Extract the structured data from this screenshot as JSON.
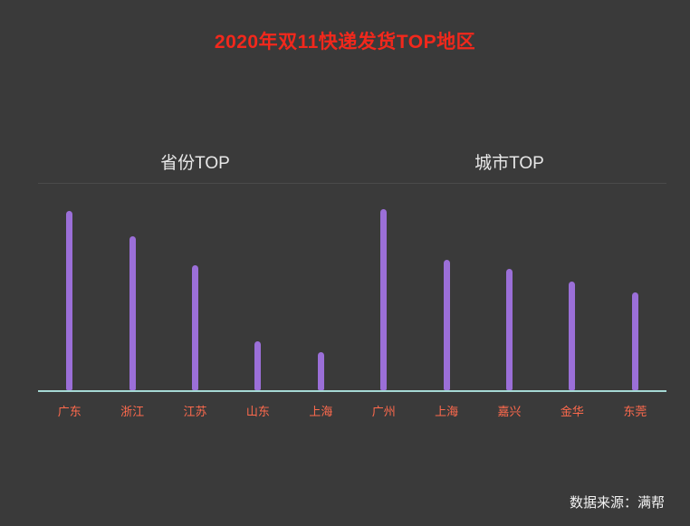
{
  "page": {
    "title": "2020年双11快递发货TOP地区",
    "source": "数据来源：满帮"
  },
  "colors": {
    "background": "#3a3a3a",
    "title": "#f2281c",
    "subtitle": "#e8e8e8",
    "bar": "#9b6fd8",
    "baseline": "#a5d8d4",
    "label": "#ff6a4d"
  },
  "chart_data": [
    {
      "type": "bar",
      "title": "省份TOP",
      "categories": [
        "广东",
        "浙江",
        "江苏",
        "山东",
        "上海"
      ],
      "values": [
        99,
        85,
        69,
        27,
        21
      ],
      "xlabel": "",
      "ylabel": "",
      "ylim": [
        0,
        100
      ],
      "grid": false,
      "legend": "none"
    },
    {
      "type": "bar",
      "title": "城市TOP",
      "categories": [
        "广州",
        "上海",
        "嘉兴",
        "金华",
        "东莞"
      ],
      "values": [
        100,
        72,
        67,
        60,
        54
      ],
      "xlabel": "",
      "ylabel": "",
      "ylim": [
        0,
        100
      ],
      "grid": false,
      "legend": "none"
    }
  ]
}
